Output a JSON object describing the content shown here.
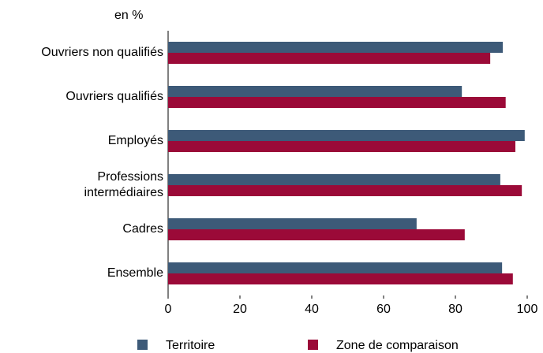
{
  "chart_data": {
    "type": "hbar",
    "unit_label": "en %",
    "categories": [
      "Ouvriers non qualifiés",
      "Ouvriers qualifiés",
      "Employés",
      "Professions\nintermédiaires",
      "Cadres",
      "Ensemble"
    ],
    "series": [
      {
        "name": "Territoire",
        "color": "#3d5a78",
        "values": [
          93.2,
          81.8,
          99.3,
          92.5,
          69.2,
          93
        ]
      },
      {
        "name": "Zone de comparaison",
        "color": "#9b0a38",
        "values": [
          89.7,
          94,
          96.7,
          98.5,
          82.6,
          96
        ]
      }
    ],
    "xlim": [
      0,
      100
    ],
    "xticks": [
      0,
      20,
      40,
      60,
      80,
      100
    ],
    "grid": false
  }
}
